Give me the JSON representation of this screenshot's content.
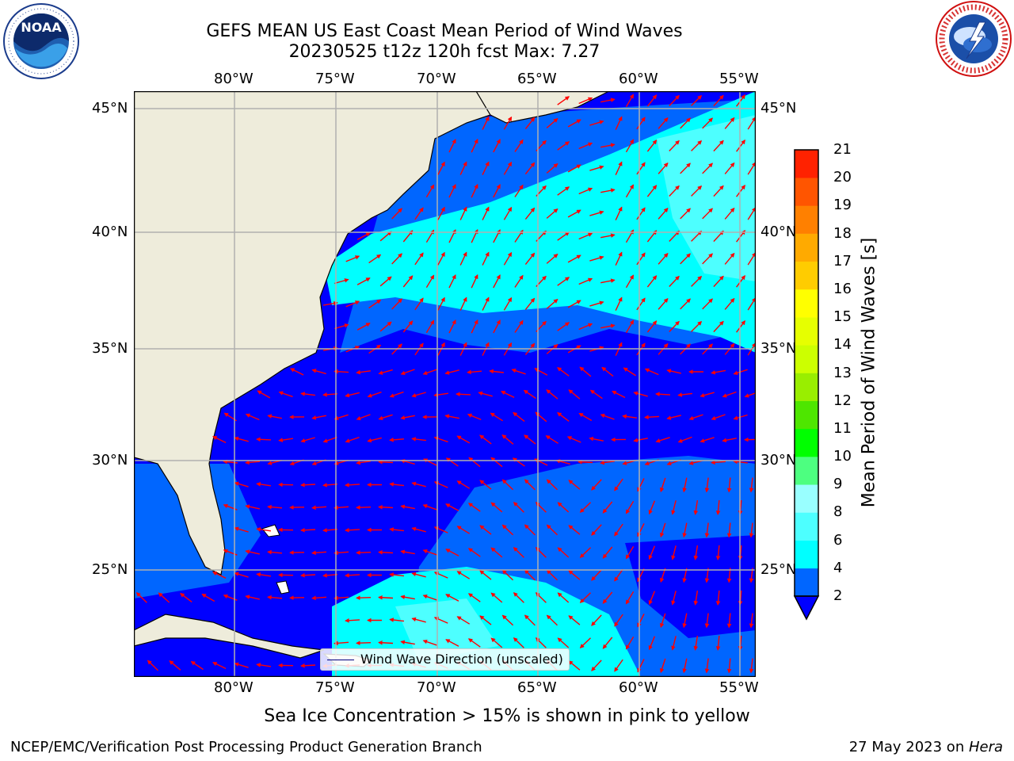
{
  "header": {
    "title_line1": "GEFS MEAN US East Coast Mean Period of Wind Waves",
    "title_line2": "20230525 t12z 120h fcst   Max: 7.27"
  },
  "logos": {
    "left": "noara-logo",
    "right": "nws-logo"
  },
  "map": {
    "lon_ticks": [
      "80°W",
      "75°W",
      "70°W",
      "65°W",
      "60°W",
      "55°W"
    ],
    "lat_ticks": [
      "45°N",
      "40°N",
      "35°N",
      "30°N",
      "25°N"
    ],
    "lon_range": [
      -85,
      -54.3
    ],
    "lat_range": [
      20.4,
      46.0
    ],
    "land_color": "#eeecdb",
    "grid_color": "#b0b0b0",
    "arrow_color": "#ff0000",
    "legend_label": "Wind Wave Direction (unscaled)"
  },
  "colorbar": {
    "title": "Mean Period of Wind Waves [s]",
    "levels": [
      "2",
      "4",
      "6",
      "8",
      "9",
      "10",
      "11",
      "12",
      "13",
      "14",
      "15",
      "16",
      "17",
      "18",
      "19",
      "20",
      "21"
    ],
    "colors": [
      "#0066ff",
      "#00ffff",
      "#4dffff",
      "#99ffff",
      "#4dff80",
      "#00ff00",
      "#4ee600",
      "#99ee00",
      "#ccff00",
      "#e6ff00",
      "#ffff00",
      "#ffcc00",
      "#ffaa00",
      "#ff8000",
      "#ff5500",
      "#ff2200"
    ],
    "extend_color": "#0000ff"
  },
  "footer": {
    "subtitle": "Sea Ice Concentration > 15% is shown in pink to yellow",
    "left": "NCEP/EMC/Verification Post Processing Product Generation Branch",
    "right_date": "27 May 2023 on ",
    "right_host": "Hera"
  }
}
